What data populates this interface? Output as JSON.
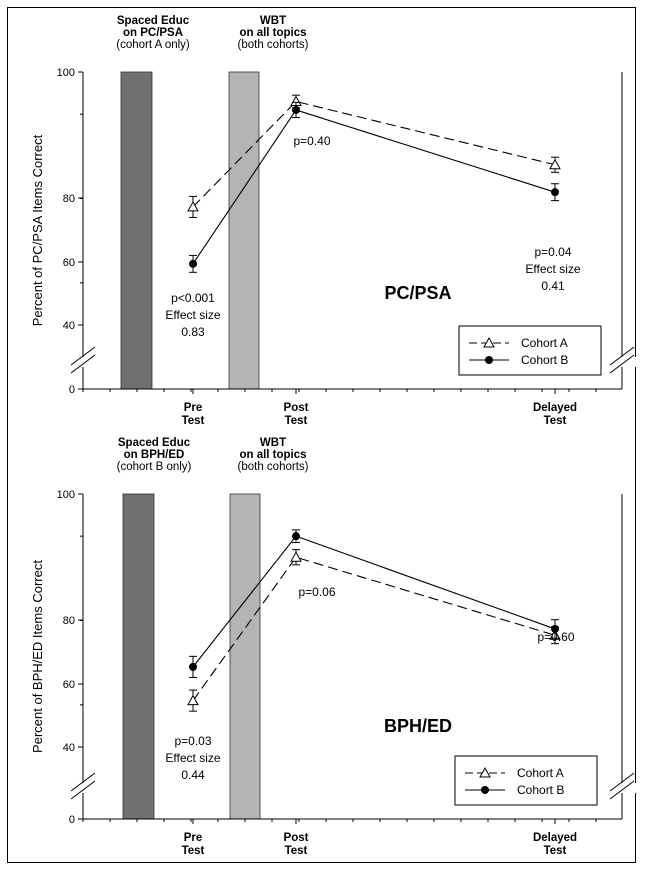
{
  "legend": {
    "cohort_a": "Cohort A",
    "cohort_b": "Cohort B"
  },
  "chart_data": [
    {
      "type": "line",
      "title": "PC/PSA",
      "ylabel": "Percent of PC/PSA Items Correct",
      "xlabel": "",
      "ylim": [
        0,
        100
      ],
      "axis_break": [
        5,
        35
      ],
      "y_ticks": [
        "0",
        "40",
        "60",
        "80",
        "100"
      ],
      "categories": [
        "Pre\nTest",
        "Post\nTest",
        "Delayed\nTest"
      ],
      "series": [
        {
          "name": "Cohort A",
          "style": "dashed",
          "marker": "open-triangle",
          "values": [
            68,
            93,
            78
          ],
          "errors": [
            2.5,
            1.5,
            1.8
          ]
        },
        {
          "name": "Cohort B",
          "style": "solid",
          "marker": "filled-circle",
          "values": [
            54.5,
            91,
            71.5
          ],
          "errors": [
            2,
            1.8,
            2
          ]
        }
      ],
      "bands": [
        {
          "label": "Spaced Educ\non PC/PSA\n(cohort A only)",
          "color": "#707070"
        },
        {
          "label": "WBT\non all topics\n(both cohorts)",
          "color": "#b4b4b4"
        }
      ],
      "annotations": [
        {
          "text": "p<0.001\nEffect size\n0.83",
          "at": "pre"
        },
        {
          "text": "p=0.40",
          "at": "post"
        },
        {
          "text": "p=0.04\nEffect size\n0.41",
          "at": "delayed"
        }
      ],
      "legend_position": "bottom-right"
    },
    {
      "type": "line",
      "title": "BPH/ED",
      "ylabel": "Percent of BPH/ED Items Correct",
      "xlabel": "",
      "ylim": [
        0,
        100
      ],
      "axis_break": [
        5,
        35
      ],
      "y_ticks": [
        "0",
        "40",
        "60",
        "80",
        "100"
      ],
      "categories": [
        "Pre\nTest",
        "Post\nTest",
        "Delayed\nTest"
      ],
      "series": [
        {
          "name": "Cohort A",
          "style": "dashed",
          "marker": "open-triangle",
          "values": [
            51,
            85,
            66.5
          ],
          "errors": [
            2.5,
            1.8,
            2
          ]
        },
        {
          "name": "Cohort B",
          "style": "solid",
          "marker": "filled-circle",
          "values": [
            59,
            90,
            68
          ],
          "errors": [
            2.5,
            1.5,
            2.2
          ]
        }
      ],
      "bands": [
        {
          "label": "Spaced Educ\non BPH/ED\n(cohort B only)",
          "color": "#707070"
        },
        {
          "label": "WBT\non all topics\n(both cohorts)",
          "color": "#b4b4b4"
        }
      ],
      "annotations": [
        {
          "text": "p=0.03\nEffect size\n0.44",
          "at": "pre"
        },
        {
          "text": "p=0.06",
          "at": "post"
        },
        {
          "text": "p=0.60",
          "at": "delayed"
        }
      ],
      "legend_position": "bottom-right"
    }
  ]
}
